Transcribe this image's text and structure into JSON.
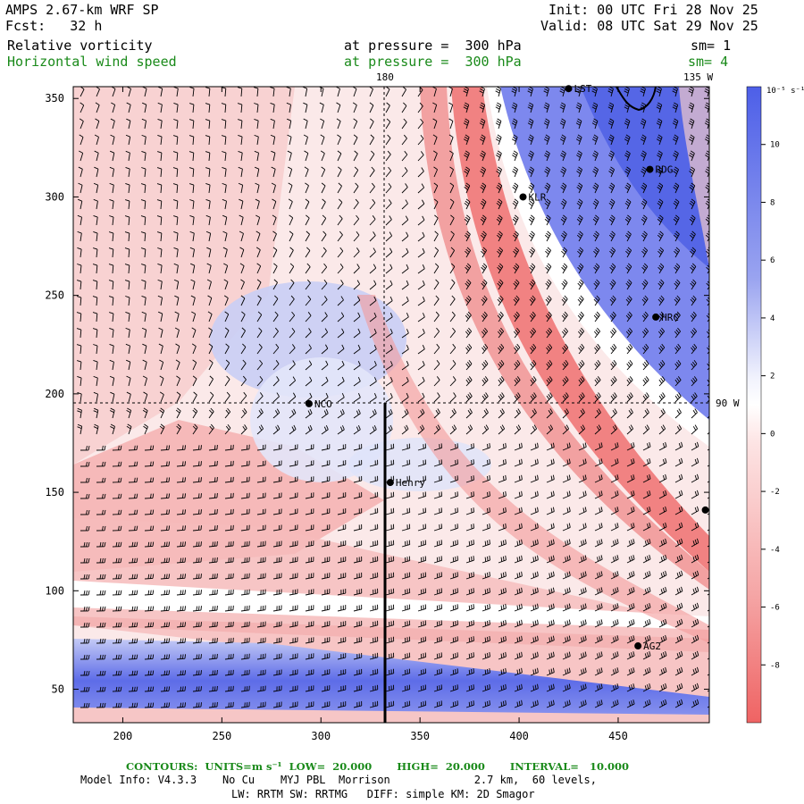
{
  "header": {
    "model_title": "AMPS 2.67-km WRF SP",
    "forecast": "Fcst:   32 h",
    "init": "Init: 00 UTC Fri 28 Nov 25",
    "valid": "Valid: 08 UTC Sat 29 Nov 25",
    "field1": "Relative vorticity",
    "field1_level": "at pressure =  300 hPa",
    "field1_sm": "sm= 1",
    "field2": "Horizontal wind speed",
    "field2_level": "at pressure =  300 hPa",
    "field2_sm": "sm= 4"
  },
  "map_labels": {
    "lon_180": "180",
    "lon_135w": "135 W",
    "lat_90w": "90 W"
  },
  "stations": [
    {
      "name": "LST",
      "x": 425,
      "y": 355
    },
    {
      "name": "RDG",
      "x": 466,
      "y": 314
    },
    {
      "name": "KLR",
      "x": 402,
      "y": 300
    },
    {
      "name": "HRC",
      "x": 469,
      "y": 239
    },
    {
      "name": "NCO",
      "x": 294,
      "y": 195
    },
    {
      "name": "Henry",
      "x": 335,
      "y": 155
    },
    {
      "name": "",
      "x": 494,
      "y": 141
    },
    {
      "name": "AG2",
      "x": 460,
      "y": 72
    }
  ],
  "colorbar": {
    "unit": "10⁻⁵ s⁻¹",
    "ticks": [
      "10",
      "8",
      "6",
      "4",
      "2",
      "0",
      "-2",
      "-4",
      "-6",
      "-8"
    ],
    "colors_high": "#5566e6",
    "colors_low": "#f06a6a"
  },
  "footer": {
    "contours": "CONTOURS:  UNITS=m s⁻¹  LOW=  20.000       HIGH=  20.000       INTERVAL=   10.000",
    "model_info": "Model Info: V4.3.3    No Cu    MYJ PBL  Morrison             2.7 km,  60 levels,",
    "model_info2": "LW: RRTM SW: RRTMG   DIFF: simple KM: 2D Smagor"
  },
  "chart_data": {
    "type": "heatmap",
    "title": "Relative vorticity / Horizontal wind speed at 300 hPa",
    "xlabel": "",
    "ylabel": "",
    "xlim": [
      175,
      496
    ],
    "ylim": [
      33,
      356
    ],
    "x_ticks": [
      200,
      250,
      300,
      350,
      400,
      450
    ],
    "y_ticks": [
      50,
      100,
      150,
      200,
      250,
      300,
      350
    ],
    "colorbar_range": [
      -10,
      12
    ],
    "reference_lines": {
      "meridian_180_x": 330,
      "parallel_90w_y": 195
    },
    "cross_section_line": {
      "x": 334,
      "y_from": 33,
      "y_to": 195
    },
    "grid": false
  }
}
